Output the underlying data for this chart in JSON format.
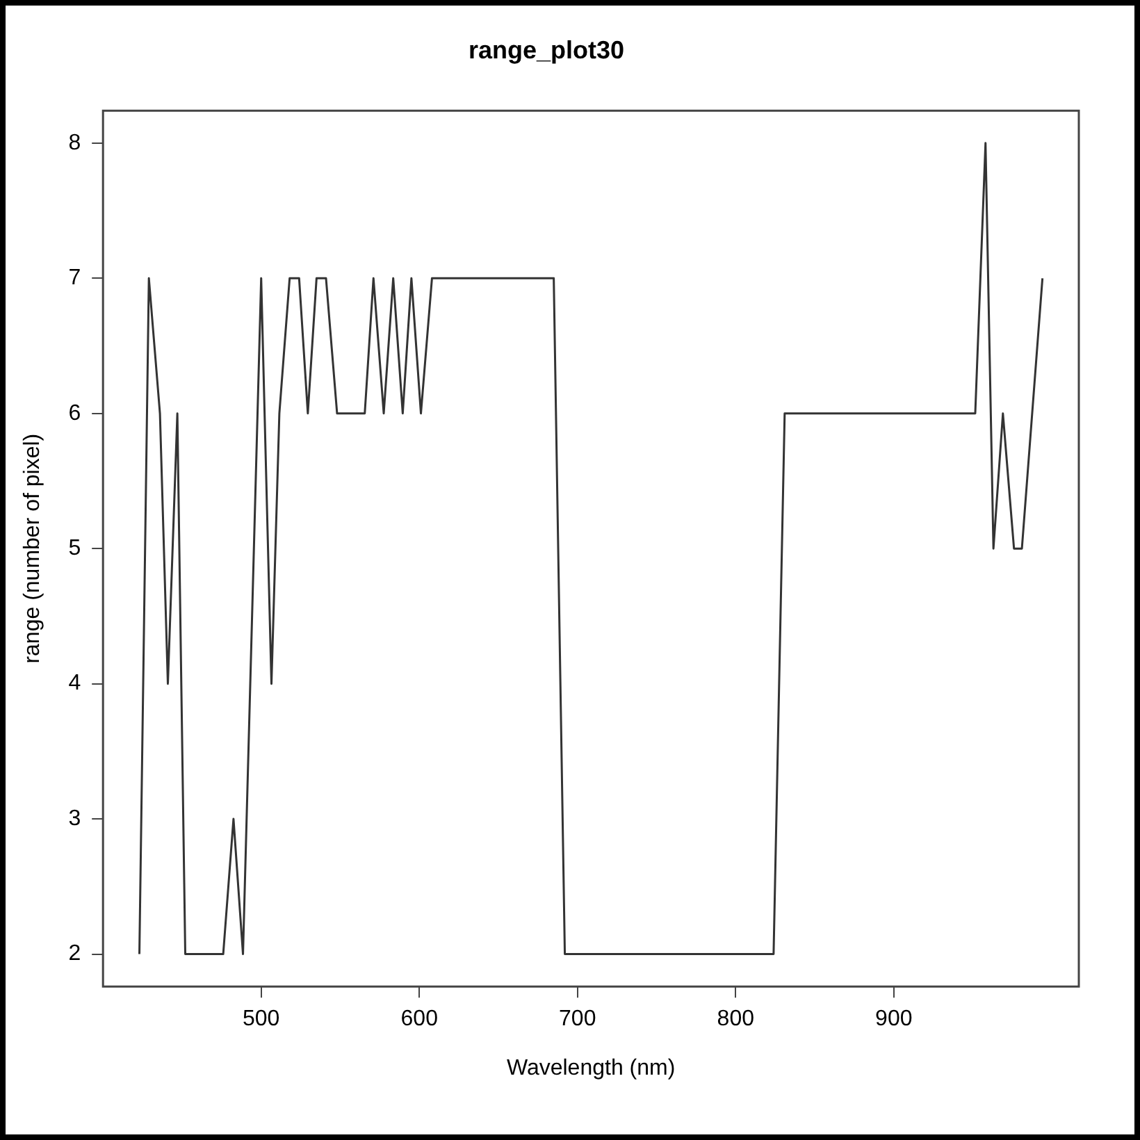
{
  "chart_data": {
    "type": "line",
    "title": "range_plot30",
    "xlabel": "Wavelength (nm)",
    "ylabel": "range (number of pixel)",
    "x": [
      423,
      429,
      436,
      441,
      447,
      452,
      476,
      482.5,
      488.5,
      500,
      506.5,
      511.5,
      518,
      524,
      529.5,
      535,
      541,
      548,
      565.5,
      571,
      577.5,
      583.5,
      589.5,
      595,
      601,
      608,
      685,
      692,
      824,
      831,
      951.5,
      958,
      963,
      969,
      976,
      981,
      994
    ],
    "series": [
      {
        "color": "#333333",
        "values": [
          2,
          7,
          6,
          4,
          6,
          2,
          2,
          3,
          2,
          7,
          4,
          6,
          7,
          7,
          6,
          7,
          7,
          6,
          6,
          7,
          6,
          7,
          6,
          7,
          6,
          7,
          7,
          2,
          2,
          6,
          6,
          8,
          5,
          6,
          5,
          5,
          7
        ]
      }
    ],
    "xlim": [
      400,
      1017
    ],
    "xticks": [
      500,
      600,
      700,
      800,
      900
    ],
    "ylim": [
      1.76,
      8.24
    ],
    "yticks": [
      2,
      3,
      4,
      5,
      6,
      7,
      8
    ],
    "grid": false,
    "legend": false,
    "marker": "none",
    "line_style": "solid"
  }
}
